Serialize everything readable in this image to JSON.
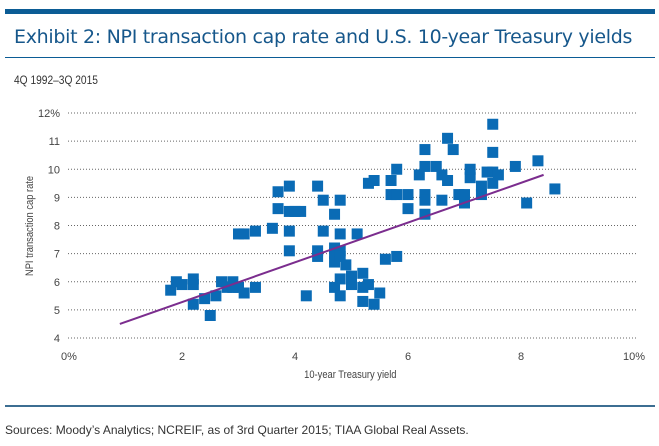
{
  "header": {
    "title": "Exhibit 2: NPI transaction cap rate and U.S. 10-year Treasury yields",
    "subtitle": "4Q 1992–3Q 2015"
  },
  "footer": {
    "source": "Sources: Moody’s Analytics; NCREIF, as of 3rd Quarter 2015; TIAA Global Real Assets."
  },
  "colors": {
    "accent": "#0b5c95",
    "points": "#0a6bb5",
    "trend": "#7b2d8e"
  },
  "chart_data": {
    "type": "scatter",
    "title": "Exhibit 2: NPI transaction cap rate and U.S. 10-year Treasury yields",
    "subtitle": "4Q 1992–3Q 2015",
    "xlabel": "10-year Treasury yield",
    "ylabel": "NPI transaction cap rate",
    "xlim": [
      0,
      10
    ],
    "ylim": [
      4,
      12
    ],
    "x_ticks": [
      "0%",
      "2",
      "4",
      "6",
      "8",
      "10%"
    ],
    "y_ticks": [
      "4",
      "5",
      "6",
      "7",
      "8",
      "9",
      "10",
      "11",
      "12%"
    ],
    "grid": "horizontal-dotted",
    "points": [
      [
        1.8,
        5.7
      ],
      [
        1.9,
        6.0
      ],
      [
        2.0,
        5.9
      ],
      [
        2.2,
        5.9
      ],
      [
        2.2,
        6.1
      ],
      [
        2.2,
        5.2
      ],
      [
        2.4,
        5.4
      ],
      [
        2.5,
        4.8
      ],
      [
        2.6,
        5.5
      ],
      [
        2.7,
        6.0
      ],
      [
        2.8,
        5.8
      ],
      [
        2.9,
        6.0
      ],
      [
        2.9,
        5.8
      ],
      [
        3.0,
        5.8
      ],
      [
        3.1,
        5.6
      ],
      [
        3.0,
        7.7
      ],
      [
        3.1,
        7.7
      ],
      [
        3.3,
        7.8
      ],
      [
        3.6,
        7.9
      ],
      [
        3.7,
        8.6
      ],
      [
        3.7,
        9.2
      ],
      [
        3.9,
        8.5
      ],
      [
        3.9,
        9.4
      ],
      [
        3.9,
        7.8
      ],
      [
        3.9,
        7.1
      ],
      [
        4.0,
        8.5
      ],
      [
        4.1,
        8.5
      ],
      [
        4.2,
        5.5
      ],
      [
        4.4,
        9.4
      ],
      [
        4.4,
        7.1
      ],
      [
        4.4,
        6.9
      ],
      [
        4.5,
        8.9
      ],
      [
        4.5,
        7.8
      ],
      [
        4.7,
        8.4
      ],
      [
        4.7,
        7.2
      ],
      [
        4.7,
        7.0
      ],
      [
        4.7,
        6.7
      ],
      [
        4.7,
        5.8
      ],
      [
        4.8,
        8.9
      ],
      [
        4.8,
        7.7
      ],
      [
        4.8,
        7.1
      ],
      [
        4.8,
        6.1
      ],
      [
        4.8,
        5.5
      ],
      [
        4.9,
        6.6
      ],
      [
        5.0,
        5.9
      ],
      [
        5.0,
        6.2
      ],
      [
        5.1,
        7.7
      ],
      [
        5.2,
        5.8
      ],
      [
        5.2,
        6.3
      ],
      [
        5.2,
        5.3
      ],
      [
        5.3,
        9.5
      ],
      [
        5.3,
        5.9
      ],
      [
        5.4,
        9.6
      ],
      [
        5.4,
        5.2
      ],
      [
        5.5,
        5.6
      ],
      [
        5.7,
        9.6
      ],
      [
        5.7,
        9.1
      ],
      [
        5.8,
        10.0
      ],
      [
        5.8,
        9.1
      ],
      [
        5.6,
        6.8
      ],
      [
        5.8,
        6.9
      ],
      [
        6.0,
        9.1
      ],
      [
        6.0,
        8.6
      ],
      [
        6.2,
        9.8
      ],
      [
        6.3,
        10.7
      ],
      [
        6.3,
        10.1
      ],
      [
        6.3,
        9.1
      ],
      [
        6.3,
        8.9
      ],
      [
        6.3,
        8.4
      ],
      [
        6.5,
        10.1
      ],
      [
        6.6,
        9.8
      ],
      [
        6.6,
        8.9
      ],
      [
        6.7,
        11.1
      ],
      [
        6.7,
        9.6
      ],
      [
        6.8,
        10.7
      ],
      [
        6.9,
        9.1
      ],
      [
        7.0,
        9.1
      ],
      [
        7.0,
        8.8
      ],
      [
        7.1,
        9.7
      ],
      [
        7.1,
        10.0
      ],
      [
        7.3,
        9.4
      ],
      [
        7.3,
        9.1
      ],
      [
        7.4,
        9.9
      ],
      [
        7.5,
        9.9
      ],
      [
        7.5,
        9.5
      ],
      [
        7.5,
        10.6
      ],
      [
        7.5,
        11.6
      ],
      [
        7.6,
        9.8
      ],
      [
        7.9,
        10.1
      ],
      [
        8.1,
        8.8
      ],
      [
        8.3,
        10.3
      ],
      [
        8.6,
        9.3
      ],
      [
        4.8,
        6.9
      ],
      [
        3.3,
        5.8
      ]
    ],
    "trendline": {
      "x": [
        0.9,
        8.4
      ],
      "y": [
        4.5,
        9.8
      ]
    }
  }
}
